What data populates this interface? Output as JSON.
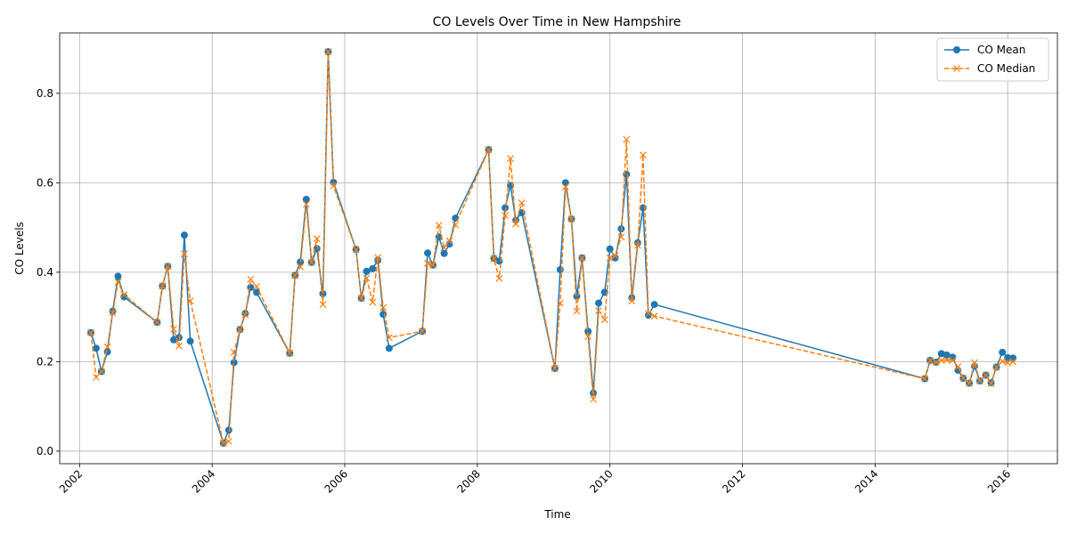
{
  "chart_data": {
    "type": "line",
    "title": "CO Levels Over Time in New Hampshire",
    "xlabel": "Time",
    "ylabel": "CO Levels",
    "xlim": [
      2001.7,
      2016.75
    ],
    "ylim": [
      -0.028,
      0.935
    ],
    "x_ticks": [
      2002,
      2004,
      2006,
      2008,
      2010,
      2012,
      2014,
      2016
    ],
    "x_tick_labels": [
      "2002",
      "2004",
      "2006",
      "2008",
      "2010",
      "2012",
      "2014",
      "2016"
    ],
    "y_ticks": [
      0.0,
      0.2,
      0.4,
      0.6,
      0.8
    ],
    "y_tick_labels": [
      "0.0",
      "0.2",
      "0.4",
      "0.6",
      "0.8"
    ],
    "grid": true,
    "legend_position": "top-right",
    "colors": {
      "mean": "#1f77b4",
      "median": "#ff7f0e"
    },
    "series": [
      {
        "name": "CO Mean",
        "style": "solid",
        "marker": "circle",
        "points": [
          [
            2002.17,
            0.265
          ],
          [
            2002.25,
            0.23
          ],
          [
            2002.33,
            0.178
          ],
          [
            2002.42,
            0.222
          ],
          [
            2002.5,
            0.313
          ],
          [
            2002.58,
            0.391
          ],
          [
            2002.67,
            0.345
          ],
          [
            2003.17,
            0.288
          ],
          [
            2003.25,
            0.369
          ],
          [
            2003.33,
            0.413
          ],
          [
            2003.42,
            0.249
          ],
          [
            2003.5,
            0.254
          ],
          [
            2003.58,
            0.483
          ],
          [
            2003.67,
            0.246
          ],
          [
            2004.17,
            0.018
          ],
          [
            2004.25,
            0.047
          ],
          [
            2004.33,
            0.198
          ],
          [
            2004.42,
            0.272
          ],
          [
            2004.5,
            0.308
          ],
          [
            2004.58,
            0.366
          ],
          [
            2004.67,
            0.355
          ],
          [
            2005.17,
            0.219
          ],
          [
            2005.25,
            0.393
          ],
          [
            2005.33,
            0.423
          ],
          [
            2005.42,
            0.563
          ],
          [
            2005.5,
            0.422
          ],
          [
            2005.58,
            0.453
          ],
          [
            2005.67,
            0.352
          ],
          [
            2005.75,
            0.893
          ],
          [
            2005.83,
            0.601
          ],
          [
            2006.17,
            0.451
          ],
          [
            2006.25,
            0.342
          ],
          [
            2006.33,
            0.402
          ],
          [
            2006.42,
            0.408
          ],
          [
            2006.5,
            0.427
          ],
          [
            2006.58,
            0.306
          ],
          [
            2006.67,
            0.23
          ],
          [
            2007.17,
            0.268
          ],
          [
            2007.25,
            0.443
          ],
          [
            2007.33,
            0.416
          ],
          [
            2007.42,
            0.479
          ],
          [
            2007.5,
            0.442
          ],
          [
            2007.58,
            0.463
          ],
          [
            2007.67,
            0.521
          ],
          [
            2008.17,
            0.674
          ],
          [
            2008.25,
            0.431
          ],
          [
            2008.33,
            0.425
          ],
          [
            2008.42,
            0.544
          ],
          [
            2008.5,
            0.594
          ],
          [
            2008.58,
            0.516
          ],
          [
            2008.67,
            0.533
          ],
          [
            2009.17,
            0.185
          ],
          [
            2009.25,
            0.406
          ],
          [
            2009.33,
            0.6
          ],
          [
            2009.42,
            0.519
          ],
          [
            2009.5,
            0.346
          ],
          [
            2009.58,
            0.432
          ],
          [
            2009.67,
            0.268
          ],
          [
            2009.75,
            0.13
          ],
          [
            2009.83,
            0.331
          ],
          [
            2009.92,
            0.355
          ],
          [
            2010.0,
            0.452
          ],
          [
            2010.08,
            0.432
          ],
          [
            2010.17,
            0.497
          ],
          [
            2010.25,
            0.619
          ],
          [
            2010.33,
            0.343
          ],
          [
            2010.42,
            0.466
          ],
          [
            2010.5,
            0.544
          ],
          [
            2010.58,
            0.304
          ],
          [
            2010.67,
            0.328
          ],
          [
            2014.75,
            0.162
          ],
          [
            2014.83,
            0.203
          ],
          [
            2014.92,
            0.199
          ],
          [
            2015.0,
            0.218
          ],
          [
            2015.08,
            0.215
          ],
          [
            2015.17,
            0.21
          ],
          [
            2015.25,
            0.181
          ],
          [
            2015.33,
            0.163
          ],
          [
            2015.42,
            0.152
          ],
          [
            2015.5,
            0.19
          ],
          [
            2015.58,
            0.157
          ],
          [
            2015.67,
            0.17
          ],
          [
            2015.75,
            0.153
          ],
          [
            2015.83,
            0.188
          ],
          [
            2015.92,
            0.221
          ],
          [
            2016.0,
            0.209
          ],
          [
            2016.08,
            0.208
          ]
        ]
      },
      {
        "name": "CO Median",
        "style": "dashed",
        "marker": "x",
        "points": [
          [
            2002.17,
            0.265
          ],
          [
            2002.25,
            0.165
          ],
          [
            2002.33,
            0.178
          ],
          [
            2002.42,
            0.233
          ],
          [
            2002.5,
            0.309
          ],
          [
            2002.58,
            0.378
          ],
          [
            2002.67,
            0.35
          ],
          [
            2003.17,
            0.288
          ],
          [
            2003.25,
            0.369
          ],
          [
            2003.33,
            0.413
          ],
          [
            2003.42,
            0.273
          ],
          [
            2003.5,
            0.235
          ],
          [
            2003.58,
            0.441
          ],
          [
            2003.67,
            0.336
          ],
          [
            2004.17,
            0.018
          ],
          [
            2004.25,
            0.022
          ],
          [
            2004.33,
            0.221
          ],
          [
            2004.42,
            0.272
          ],
          [
            2004.5,
            0.305
          ],
          [
            2004.58,
            0.384
          ],
          [
            2004.67,
            0.368
          ],
          [
            2005.17,
            0.219
          ],
          [
            2005.25,
            0.393
          ],
          [
            2005.33,
            0.412
          ],
          [
            2005.42,
            0.552
          ],
          [
            2005.5,
            0.422
          ],
          [
            2005.58,
            0.475
          ],
          [
            2005.67,
            0.328
          ],
          [
            2005.75,
            0.893
          ],
          [
            2005.83,
            0.593
          ],
          [
            2006.17,
            0.451
          ],
          [
            2006.25,
            0.342
          ],
          [
            2006.33,
            0.387
          ],
          [
            2006.42,
            0.333
          ],
          [
            2006.5,
            0.433
          ],
          [
            2006.58,
            0.321
          ],
          [
            2006.67,
            0.254
          ],
          [
            2007.17,
            0.268
          ],
          [
            2007.25,
            0.42
          ],
          [
            2007.33,
            0.416
          ],
          [
            2007.42,
            0.505
          ],
          [
            2007.5,
            0.455
          ],
          [
            2007.58,
            0.47
          ],
          [
            2007.67,
            0.506
          ],
          [
            2008.17,
            0.674
          ],
          [
            2008.25,
            0.43
          ],
          [
            2008.33,
            0.386
          ],
          [
            2008.42,
            0.527
          ],
          [
            2008.5,
            0.654
          ],
          [
            2008.58,
            0.508
          ],
          [
            2008.67,
            0.555
          ],
          [
            2009.17,
            0.185
          ],
          [
            2009.25,
            0.331
          ],
          [
            2009.33,
            0.591
          ],
          [
            2009.42,
            0.519
          ],
          [
            2009.5,
            0.313
          ],
          [
            2009.58,
            0.432
          ],
          [
            2009.67,
            0.256
          ],
          [
            2009.75,
            0.116
          ],
          [
            2009.83,
            0.314
          ],
          [
            2009.92,
            0.294
          ],
          [
            2010.0,
            0.432
          ],
          [
            2010.08,
            0.437
          ],
          [
            2010.17,
            0.479
          ],
          [
            2010.25,
            0.697
          ],
          [
            2010.33,
            0.336
          ],
          [
            2010.42,
            0.46
          ],
          [
            2010.5,
            0.662
          ],
          [
            2010.58,
            0.308
          ],
          [
            2010.67,
            0.302
          ],
          [
            2014.75,
            0.162
          ],
          [
            2014.83,
            0.203
          ],
          [
            2014.92,
            0.199
          ],
          [
            2015.0,
            0.203
          ],
          [
            2015.08,
            0.204
          ],
          [
            2015.17,
            0.203
          ],
          [
            2015.25,
            0.189
          ],
          [
            2015.33,
            0.163
          ],
          [
            2015.42,
            0.152
          ],
          [
            2015.5,
            0.198
          ],
          [
            2015.58,
            0.157
          ],
          [
            2015.67,
            0.17
          ],
          [
            2015.75,
            0.151
          ],
          [
            2015.83,
            0.188
          ],
          [
            2015.92,
            0.201
          ],
          [
            2016.0,
            0.198
          ],
          [
            2016.08,
            0.2
          ]
        ]
      }
    ]
  }
}
